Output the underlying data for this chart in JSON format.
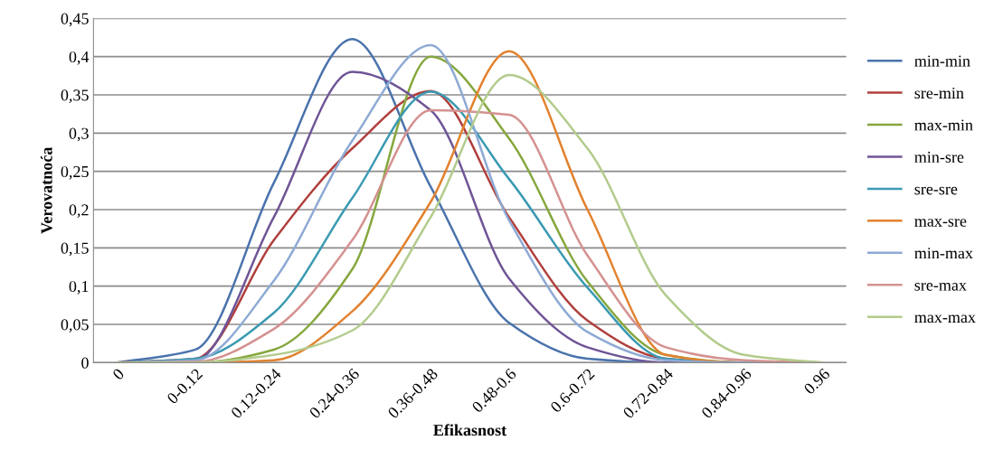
{
  "chart_data": {
    "type": "line",
    "xlabel": "Efikasnost",
    "ylabel": "Verovatnoća",
    "categories": [
      "0",
      "0-0.12",
      "0.12-0.24",
      "0.24-0.36",
      "0.36-0.48",
      "0.48-0.6",
      "0.6-0.72",
      "0.72-0.84",
      "0.84-0.96",
      "0.96"
    ],
    "series": [
      {
        "name": "min-min",
        "color": "#4a73ac",
        "values": [
          0,
          0.017,
          0.235,
          0.423,
          0.23,
          0.052,
          0.005,
          0,
          0,
          0
        ]
      },
      {
        "name": "sre-min",
        "color": "#b0403e",
        "values": [
          0,
          0.005,
          0.16,
          0.28,
          0.355,
          0.19,
          0.055,
          0.005,
          0,
          0
        ]
      },
      {
        "name": "max-min",
        "color": "#86a73e",
        "values": [
          0,
          0,
          0.017,
          0.122,
          0.4,
          0.293,
          0.106,
          0.01,
          0,
          0
        ]
      },
      {
        "name": "min-sre",
        "color": "#6f5596",
        "values": [
          0,
          0.003,
          0.19,
          0.38,
          0.33,
          0.11,
          0.02,
          0,
          0,
          0
        ]
      },
      {
        "name": "sre-sre",
        "color": "#3b9ab2",
        "values": [
          0,
          0.005,
          0.065,
          0.215,
          0.354,
          0.24,
          0.098,
          0.005,
          0,
          0
        ]
      },
      {
        "name": "max-sre",
        "color": "#e2822f",
        "values": [
          0,
          0,
          0.003,
          0.067,
          0.21,
          0.407,
          0.2,
          0.01,
          0,
          0
        ]
      },
      {
        "name": "min-max",
        "color": "#8eaad4",
        "values": [
          0,
          0.003,
          0.107,
          0.29,
          0.415,
          0.186,
          0.04,
          0.003,
          0,
          0
        ]
      },
      {
        "name": "sre-max",
        "color": "#d49290",
        "values": [
          0,
          0.001,
          0.044,
          0.16,
          0.33,
          0.324,
          0.14,
          0.02,
          0.003,
          0
        ]
      },
      {
        "name": "max-max",
        "color": "#b3cb8c",
        "values": [
          0,
          0,
          0.01,
          0.042,
          0.19,
          0.376,
          0.28,
          0.088,
          0.01,
          0
        ]
      }
    ],
    "ylim": [
      0,
      0.45
    ],
    "yticks": [
      0,
      {
        "value": 0.05,
        "label": "0,05"
      },
      {
        "value": 0.1,
        "label": "0,1"
      },
      {
        "value": 0.15,
        "label": "0,15"
      },
      {
        "value": 0.2,
        "label": "0,2"
      },
      {
        "value": 0.25,
        "label": "0,25"
      },
      {
        "value": 0.3,
        "label": "0,3"
      },
      {
        "value": 0.35,
        "label": "0,35"
      },
      {
        "value": 0.4,
        "label": "0,4"
      },
      {
        "value": 0.45,
        "label": "0,45"
      }
    ],
    "grid": "y",
    "legend": "right",
    "marker": "none",
    "line_style": "solid"
  }
}
